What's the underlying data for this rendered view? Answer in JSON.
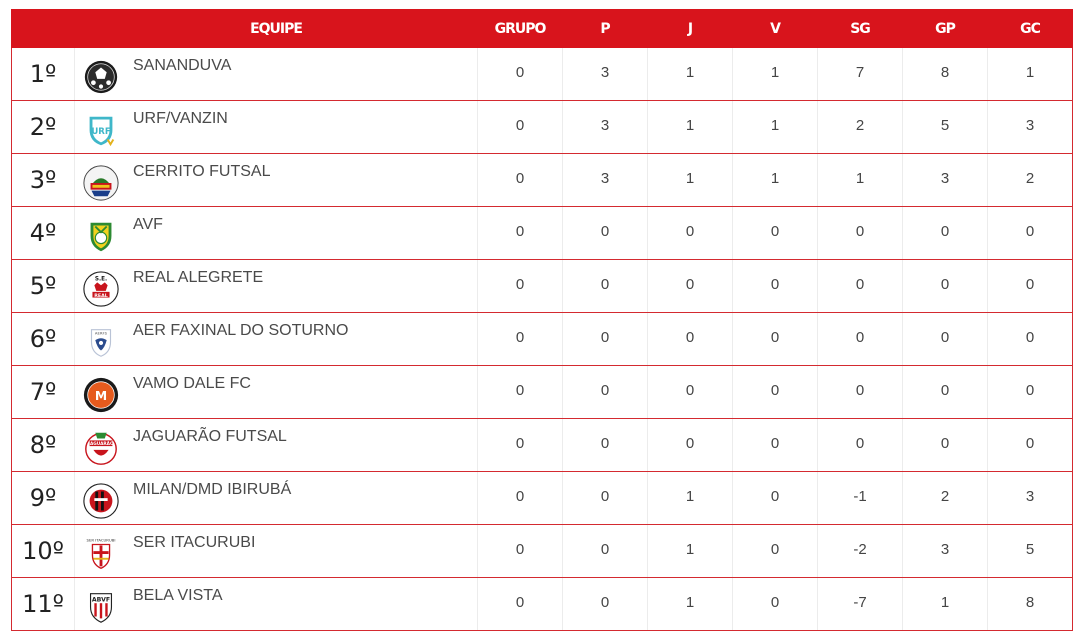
{
  "header": {
    "pos": "",
    "equipe": "EQUIPE",
    "grupo": "GRUPO",
    "p": "P",
    "j": "J",
    "v": "V",
    "sg": "SG",
    "gp": "GP",
    "gc": "GC"
  },
  "colors": {
    "header_bg": "#d8141c",
    "row_border": "#d42a30"
  },
  "rows": [
    {
      "pos": "1º",
      "team": "SANANDUVA",
      "logo": "soccer-ball-crest-icon",
      "grupo": "0",
      "p": "3",
      "j": "1",
      "v": "1",
      "sg": "7",
      "gp": "8",
      "gc": "1"
    },
    {
      "pos": "2º",
      "team": "URF/VANZIN",
      "logo": "urf-shield-icon",
      "grupo": "0",
      "p": "3",
      "j": "1",
      "v": "1",
      "sg": "2",
      "gp": "5",
      "gc": "3"
    },
    {
      "pos": "3º",
      "team": "CERRITO FUTSAL",
      "logo": "cerrito-crest-icon",
      "grupo": "0",
      "p": "3",
      "j": "1",
      "v": "1",
      "sg": "1",
      "gp": "3",
      "gc": "2"
    },
    {
      "pos": "4º",
      "team": "AVF",
      "logo": "avf-shield-icon",
      "grupo": "0",
      "p": "0",
      "j": "0",
      "v": "0",
      "sg": "0",
      "gp": "0",
      "gc": "0"
    },
    {
      "pos": "5º",
      "team": "REAL ALEGRETE",
      "logo": "real-alegrete-crest-icon",
      "grupo": "0",
      "p": "0",
      "j": "0",
      "v": "0",
      "sg": "0",
      "gp": "0",
      "gc": "0"
    },
    {
      "pos": "6º",
      "team": "AER FAXINAL DO SOTURNO",
      "logo": "aer-faxinal-shield-icon",
      "grupo": "0",
      "p": "0",
      "j": "0",
      "v": "0",
      "sg": "0",
      "gp": "0",
      "gc": "0"
    },
    {
      "pos": "7º",
      "team": "VAMO DALE FC",
      "logo": "vamo-dale-crest-icon",
      "grupo": "0",
      "p": "0",
      "j": "0",
      "v": "0",
      "sg": "0",
      "gp": "0",
      "gc": "0"
    },
    {
      "pos": "8º",
      "team": "JAGUARÃO FUTSAL",
      "logo": "jaguarao-crest-icon",
      "grupo": "0",
      "p": "0",
      "j": "0",
      "v": "0",
      "sg": "0",
      "gp": "0",
      "gc": "0"
    },
    {
      "pos": "9º",
      "team": "MILAN/DMD IBIRUBÁ",
      "logo": "milan-crest-icon",
      "grupo": "0",
      "p": "0",
      "j": "1",
      "v": "0",
      "sg": "-1",
      "gp": "2",
      "gc": "3"
    },
    {
      "pos": "10º",
      "team": "SER ITACURUBI",
      "logo": "ser-itacurubi-crest-icon",
      "grupo": "0",
      "p": "0",
      "j": "1",
      "v": "0",
      "sg": "-2",
      "gp": "3",
      "gc": "5"
    },
    {
      "pos": "11º",
      "team": "BELA VISTA",
      "logo": "abvf-shield-icon",
      "grupo": "0",
      "p": "0",
      "j": "1",
      "v": "0",
      "sg": "-7",
      "gp": "1",
      "gc": "8"
    }
  ]
}
